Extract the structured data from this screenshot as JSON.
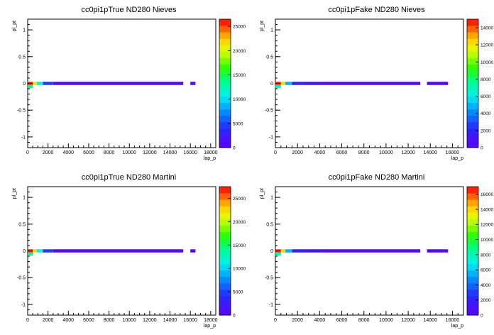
{
  "chart_data": [
    {
      "type": "heatmap",
      "title": "cc0pi1pTrue ND280 Nieves",
      "xlabel": "lap_p",
      "ylabel": "pl_pt",
      "xlim": [
        0,
        18500
      ],
      "ylim": [
        -1.2,
        1.2
      ],
      "xticks": [
        "0",
        "2000",
        "4000",
        "6000",
        "8000",
        "10000",
        "12000",
        "14000",
        "16000",
        "18000"
      ],
      "yticks": [
        "-1",
        "-0.5",
        "0",
        "0.5",
        "1"
      ],
      "zlim": [
        0,
        26500
      ],
      "zticks": [
        "0",
        "5000",
        "10000",
        "15000",
        "20000",
        "25000"
      ],
      "cells": [
        {
          "x0": 0,
          "x1": 500,
          "y0": -0.03,
          "y1": 0.03,
          "z": 26000
        },
        {
          "x0": 0,
          "x1": 500,
          "y0": -0.09,
          "y1": -0.03,
          "z": 14000
        },
        {
          "x0": 500,
          "x1": 900,
          "y0": -0.03,
          "y1": 0.03,
          "z": 22000
        },
        {
          "x0": 900,
          "x1": 1500,
          "y0": -0.03,
          "y1": 0.03,
          "z": 11000
        },
        {
          "x0": 1500,
          "x1": 2500,
          "y0": -0.03,
          "y1": 0.03,
          "z": 5000
        },
        {
          "x0": 2500,
          "x1": 15300,
          "y0": -0.03,
          "y1": 0.03,
          "z": 1000
        },
        {
          "x0": 16000,
          "x1": 16500,
          "y0": -0.03,
          "y1": 0.03,
          "z": 800
        }
      ]
    },
    {
      "type": "heatmap",
      "title": "cc0pi1pFake ND280 Nieves",
      "xlabel": "lap_p",
      "ylabel": "pl_pt",
      "xlim": [
        0,
        17000
      ],
      "ylim": [
        -1.2,
        1.2
      ],
      "xticks": [
        "0",
        "2000",
        "4000",
        "6000",
        "8000",
        "10000",
        "12000",
        "14000",
        "16000"
      ],
      "yticks": [
        "-1",
        "-0.5",
        "0",
        "0.5",
        "1"
      ],
      "zlim": [
        0,
        15000
      ],
      "zticks": [
        "0",
        "2000",
        "4000",
        "6000",
        "8000",
        "10000",
        "12000",
        "14000"
      ],
      "cells": [
        {
          "x0": 0,
          "x1": 500,
          "y0": -0.03,
          "y1": 0.03,
          "z": 14800
        },
        {
          "x0": 0,
          "x1": 500,
          "y0": -0.09,
          "y1": -0.03,
          "z": 7000
        },
        {
          "x0": 500,
          "x1": 900,
          "y0": -0.03,
          "y1": 0.03,
          "z": 12500
        },
        {
          "x0": 900,
          "x1": 1500,
          "y0": -0.03,
          "y1": 0.03,
          "z": 5000
        },
        {
          "x0": 1500,
          "x1": 2500,
          "y0": -0.03,
          "y1": 0.03,
          "z": 2200
        },
        {
          "x0": 2500,
          "x1": 4200,
          "y0": -0.03,
          "y1": 0.03,
          "z": 1000
        },
        {
          "x0": 4200,
          "x1": 13100,
          "y0": -0.03,
          "y1": 0.03,
          "z": 400
        },
        {
          "x0": 13700,
          "x1": 15600,
          "y0": -0.03,
          "y1": 0.03,
          "z": 300
        }
      ]
    },
    {
      "type": "heatmap",
      "title": "cc0pi1pTrue ND280 Martini",
      "xlabel": "lap_p",
      "ylabel": "pl_pt",
      "xlim": [
        0,
        18500
      ],
      "ylim": [
        -1.2,
        1.2
      ],
      "xticks": [
        "0",
        "2000",
        "4000",
        "6000",
        "8000",
        "10000",
        "12000",
        "14000",
        "16000",
        "18000"
      ],
      "yticks": [
        "-1",
        "-0.5",
        "0",
        "0.5",
        "1"
      ],
      "zlim": [
        0,
        27500
      ],
      "zticks": [
        "0",
        "5000",
        "10000",
        "15000",
        "20000",
        "25000"
      ],
      "cells": [
        {
          "x0": 0,
          "x1": 500,
          "y0": -0.03,
          "y1": 0.03,
          "z": 27000
        },
        {
          "x0": 0,
          "x1": 500,
          "y0": -0.09,
          "y1": -0.03,
          "z": 14000
        },
        {
          "x0": 500,
          "x1": 900,
          "y0": -0.03,
          "y1": 0.03,
          "z": 22500
        },
        {
          "x0": 900,
          "x1": 1500,
          "y0": -0.03,
          "y1": 0.03,
          "z": 11000
        },
        {
          "x0": 1500,
          "x1": 2500,
          "y0": -0.03,
          "y1": 0.03,
          "z": 5000
        },
        {
          "x0": 2500,
          "x1": 15300,
          "y0": -0.03,
          "y1": 0.03,
          "z": 1000
        },
        {
          "x0": 16000,
          "x1": 16500,
          "y0": -0.03,
          "y1": 0.03,
          "z": 800
        }
      ]
    },
    {
      "type": "heatmap",
      "title": "cc0pi1pFake ND280 Martini",
      "xlabel": "lap_p",
      "ylabel": "pl_pt",
      "xlim": [
        0,
        17000
      ],
      "ylim": [
        -1.2,
        1.2
      ],
      "xticks": [
        "0",
        "2000",
        "4000",
        "6000",
        "8000",
        "10000",
        "12000",
        "14000",
        "16000"
      ],
      "yticks": [
        "-1",
        "-0.5",
        "0",
        "0.5",
        "1"
      ],
      "zlim": [
        0,
        17000
      ],
      "zticks": [
        "0",
        "2000",
        "4000",
        "6000",
        "8000",
        "10000",
        "12000",
        "14000",
        "16000"
      ],
      "cells": [
        {
          "x0": 0,
          "x1": 500,
          "y0": -0.03,
          "y1": 0.03,
          "z": 16800
        },
        {
          "x0": 0,
          "x1": 500,
          "y0": -0.09,
          "y1": -0.03,
          "z": 8000
        },
        {
          "x0": 500,
          "x1": 900,
          "y0": -0.03,
          "y1": 0.03,
          "z": 14000
        },
        {
          "x0": 900,
          "x1": 1500,
          "y0": -0.03,
          "y1": 0.03,
          "z": 5500
        },
        {
          "x0": 1500,
          "x1": 2500,
          "y0": -0.03,
          "y1": 0.03,
          "z": 2500
        },
        {
          "x0": 2500,
          "x1": 4200,
          "y0": -0.03,
          "y1": 0.03,
          "z": 1100
        },
        {
          "x0": 4200,
          "x1": 13100,
          "y0": -0.03,
          "y1": 0.03,
          "z": 450
        },
        {
          "x0": 13700,
          "x1": 15600,
          "y0": -0.03,
          "y1": 0.03,
          "z": 300
        }
      ]
    }
  ]
}
